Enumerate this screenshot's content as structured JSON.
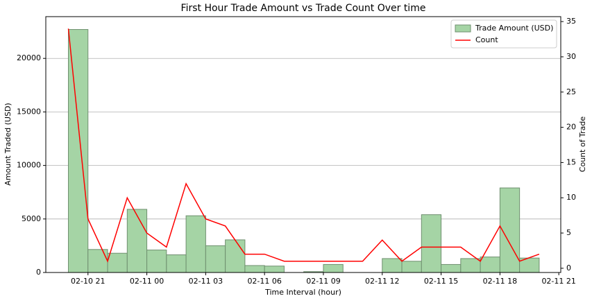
{
  "chart_data": {
    "type": "bar_line",
    "title": "First Hour Trade Amount vs Trade Count Over time",
    "xlabel": "Time Interval (hour)",
    "ylabel": "Amount Traded (USD)",
    "y2label": "Count of Trade",
    "x": [
      20,
      21,
      22,
      23,
      24,
      25,
      26,
      27,
      28,
      29,
      30,
      31,
      32,
      33,
      34,
      35,
      36,
      37,
      38,
      39,
      40,
      41,
      42,
      43,
      44
    ],
    "xlim": [
      18.85,
      45.1
    ],
    "xticks": [
      {
        "value": 21,
        "label": "02-10 21"
      },
      {
        "value": 24,
        "label": "02-11 00"
      },
      {
        "value": 27,
        "label": "02-11 03"
      },
      {
        "value": 30,
        "label": "02-11 06"
      },
      {
        "value": 33,
        "label": "02-11 09"
      },
      {
        "value": 36,
        "label": "02-11 12"
      },
      {
        "value": 39,
        "label": "02-11 15"
      },
      {
        "value": 42,
        "label": "02-11 18"
      },
      {
        "value": 45,
        "label": "02-11 21"
      }
    ],
    "ylim": [
      0,
      23900
    ],
    "yticks": [
      0,
      5000,
      10000,
      15000,
      20000
    ],
    "y2lim": [
      -0.6,
      35.7
    ],
    "y2ticks": [
      0,
      5,
      10,
      15,
      20,
      25,
      30,
      35
    ],
    "grid": true,
    "legend": "upper-right",
    "series": [
      {
        "name": "Trade Amount (USD)",
        "type": "bar",
        "color": "#a5d4a5",
        "values": [
          22700,
          2150,
          1800,
          5900,
          2100,
          1650,
          5300,
          2500,
          3050,
          650,
          600,
          null,
          80,
          750,
          null,
          null,
          1300,
          1050,
          5400,
          750,
          1300,
          1450,
          7900,
          1350,
          null
        ]
      },
      {
        "name": "Count",
        "type": "line",
        "color": "#ff0000",
        "axis": "y2",
        "values": [
          34,
          7,
          1,
          10,
          5,
          3,
          12,
          7,
          6,
          2,
          2,
          1,
          1,
          1,
          1,
          1,
          4,
          1,
          3,
          3,
          3,
          1,
          6,
          1,
          2
        ]
      }
    ]
  }
}
